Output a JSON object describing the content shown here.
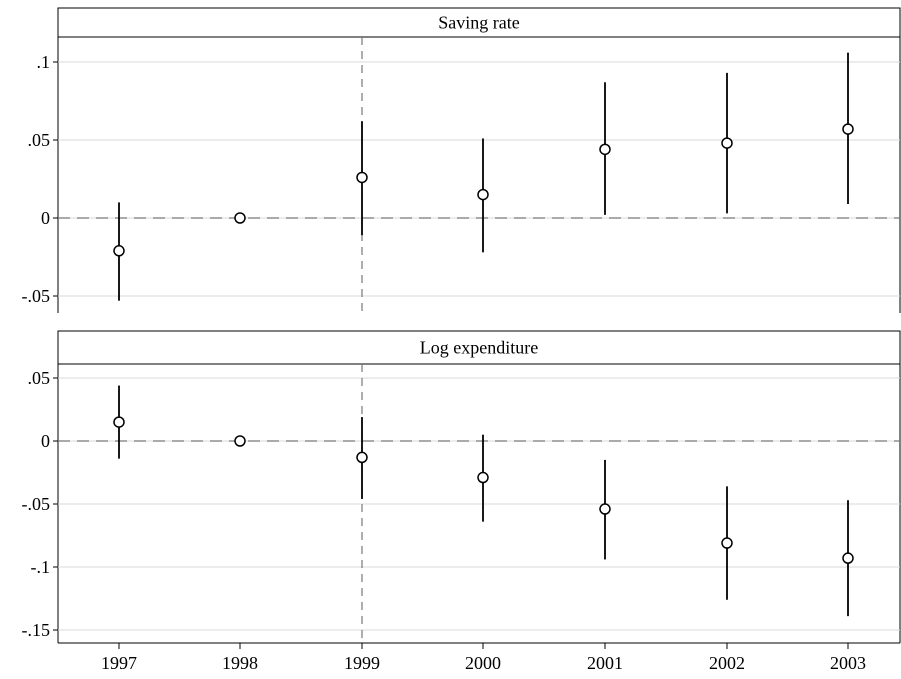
{
  "chart_data": [
    {
      "type": "scatter",
      "title": "Saving rate",
      "x": [
        "1997",
        "1998",
        "1999",
        "2000",
        "2001",
        "2002",
        "2003"
      ],
      "y": [
        -0.021,
        0.0,
        0.026,
        0.015,
        0.044,
        0.048,
        0.057
      ],
      "ci_low": [
        -0.053,
        0.0,
        -0.011,
        -0.022,
        0.002,
        0.003,
        0.009
      ],
      "ci_high": [
        0.01,
        0.0,
        0.062,
        0.051,
        0.087,
        0.093,
        0.106
      ],
      "yticks": [
        ".1",
        ".05",
        "0",
        "-.05"
      ],
      "ytick_values": [
        0.1,
        0.05,
        0,
        -0.05
      ],
      "ylim": [
        -0.062,
        0.115
      ],
      "reference_y": 0,
      "reference_x": "1999",
      "grid": true
    },
    {
      "type": "scatter",
      "title": "Log expenditure",
      "x": [
        "1997",
        "1998",
        "1999",
        "2000",
        "2001",
        "2002",
        "2003"
      ],
      "y": [
        0.015,
        0.0,
        -0.013,
        -0.029,
        -0.054,
        -0.081,
        -0.093
      ],
      "ci_low": [
        -0.014,
        0.0,
        -0.046,
        -0.064,
        -0.094,
        -0.126,
        -0.139
      ],
      "ci_high": [
        0.044,
        0.0,
        0.019,
        0.005,
        -0.015,
        -0.036,
        -0.047
      ],
      "yticks": [
        ".05",
        "0",
        "-.05",
        "-.1",
        "-.15"
      ],
      "ytick_values": [
        0.05,
        0,
        -0.05,
        -0.1,
        -0.15
      ],
      "ylim": [
        -0.16,
        0.06
      ],
      "reference_y": 0,
      "reference_x": "1999",
      "grid": true
    }
  ],
  "x_tick_labels": [
    "1997",
    "1998",
    "1999",
    "2000",
    "2001",
    "2002",
    "2003"
  ]
}
